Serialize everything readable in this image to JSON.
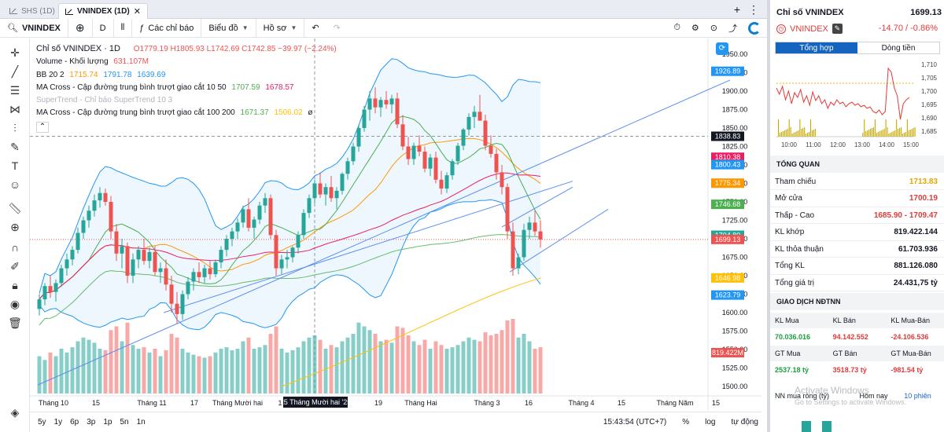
{
  "tabs": [
    {
      "label": "SHS (1D)",
      "active": false
    },
    {
      "label": "VNINDEX (1D)",
      "active": true
    }
  ],
  "toolbar": {
    "symbol": "VNINDEX",
    "interval": "D",
    "indicators_label": "Các chỉ báo",
    "chart_type_label": "Biểu đồ",
    "profile_label": "Hồ sơ"
  },
  "legend": {
    "title": "Chỉ số VNINDEX · 1D",
    "ohlc": "O1779.19 H1805.93 L1742.69 C1742.85 −39.97 (−2.24%)",
    "volume_label": "Volume - Khối lượng",
    "volume_value": "631.107M",
    "bb_label": "BB 20 2",
    "bb_values": [
      "1715.74",
      "1791.78",
      "1639.69"
    ],
    "ma1_label": "MA Cross - Cập đường trung bình trượt giao cắt 10 50",
    "ma1_values": [
      "1707.59",
      "1678.57"
    ],
    "supertrend_label": "SuperTrend - Chỉ báo SuperTrend 10 3",
    "ma2_label": "MA Cross - Cập đường trung bình trượt giao cắt 100 200",
    "ma2_values": [
      "1671.37",
      "1506.02"
    ]
  },
  "price_axis": {
    "ticks": [
      "1950.00",
      "1925.00",
      "1900.00",
      "1875.00",
      "1850.00",
      "1825.00",
      "1800.00",
      "1775.00",
      "1750.00",
      "1725.00",
      "1700.00",
      "1675.00",
      "1650.00",
      "1625.00",
      "1600.00",
      "1575.00",
      "1550.00",
      "1525.00",
      "1500.00"
    ],
    "tags": [
      {
        "value": "1926.89",
        "color": "#2196f3"
      },
      {
        "value": "1838.83",
        "color": "#131722"
      },
      {
        "value": "1810.38",
        "color": "#e91e63"
      },
      {
        "value": "1800.43",
        "color": "#2196f3"
      },
      {
        "value": "1775.34",
        "color": "#ff9800"
      },
      {
        "value": "1746.68",
        "color": "#4caf50"
      },
      {
        "value": "1704.80",
        "color": "#26a69a"
      },
      {
        "value": "1699.13",
        "color": "#ef5350"
      },
      {
        "value": "1646.98",
        "color": "#ffc107"
      },
      {
        "value": "1623.79",
        "color": "#2196f3"
      },
      {
        "value": "819.422M",
        "color": "#ef5350"
      }
    ]
  },
  "time_axis": {
    "labels": [
      "Tháng 10",
      "15",
      "Tháng 11",
      "17",
      "Tháng Mười hai",
      "1",
      "19",
      "Tháng Hai",
      "Tháng 3",
      "16",
      "Tháng 4",
      "15",
      "Tháng Năm",
      "15"
    ],
    "crosshair_label": "25 Tháng Mười hai '25"
  },
  "bottombar": {
    "ranges": [
      "5y",
      "1y",
      "6p",
      "3p",
      "1p",
      "5n",
      "1n"
    ],
    "clock": "15:43:54 (UTC+7)",
    "options": [
      "%",
      "log",
      "tự động"
    ]
  },
  "panel": {
    "title": "Chỉ số VNINDEX",
    "price": "1699.13",
    "symbol": "VNINDEX",
    "change": "-14.70 / -0.86%",
    "tab_summary": "Tổng hợp",
    "tab_flow": "Dòng tiền",
    "mini_chart": {
      "y_ticks": [
        "1,710",
        "1,705",
        "1,700",
        "1,695",
        "1,690",
        "1,685"
      ],
      "x_ticks": [
        "10:00",
        "11:00",
        "12:00",
        "13:00",
        "14:00",
        "15:00"
      ]
    },
    "overview_title": "TỔNG QUAN",
    "overview": [
      {
        "label": "Tham chiếu",
        "value": "1713.83",
        "color": "#e0a800"
      },
      {
        "label": "Mở cửa",
        "value": "1700.19",
        "color": "#e03b3b"
      },
      {
        "label": "Thấp - Cao",
        "value": "1685.90 - 1709.47",
        "color": "#e03b3b"
      },
      {
        "label": "KL khớp",
        "value": "819.422.144",
        "color": "#131722"
      },
      {
        "label": "KL thỏa thuận",
        "value": "61.703.936",
        "color": "#131722"
      },
      {
        "label": "Tổng KL",
        "value": "881.126.080",
        "color": "#131722"
      },
      {
        "label": "Tổng giá trị",
        "value": "24.431,75 tỷ",
        "color": "#131722"
      }
    ],
    "foreign_title": "GIAO DỊCH NĐTNN",
    "foreign_head1": [
      "KL Mua",
      "KL Bán",
      "KL Mua-Bán"
    ],
    "foreign_vals1": [
      "70.036.016",
      "94.142.552",
      "-24.106.536"
    ],
    "foreign_head2": [
      "GT Mua",
      "GT Bán",
      "GT Mua-Bán"
    ],
    "foreign_vals2": [
      "2537.18 tỷ",
      "3518.73 tỷ",
      "-981.54 tỷ"
    ],
    "net_label": "NN mua ròng (tỷ)",
    "today_label": "Hôm nay",
    "sessions_label": "10 phiên"
  },
  "watermark": {
    "line1": "Activate Windows",
    "line2": "Go to Settings to activate Windows."
  },
  "chart_data": {
    "type": "candlestick",
    "symbol": "VNINDEX",
    "interval": "1D",
    "ylim": [
      1500,
      1960
    ],
    "last_close": 1699.13,
    "candles": [
      [
        1605,
        1625,
        1596,
        1618
      ],
      [
        1618,
        1640,
        1610,
        1636
      ],
      [
        1636,
        1650,
        1620,
        1628
      ],
      [
        1628,
        1645,
        1615,
        1640
      ],
      [
        1640,
        1665,
        1635,
        1660
      ],
      [
        1660,
        1680,
        1650,
        1672
      ],
      [
        1672,
        1690,
        1664,
        1685
      ],
      [
        1685,
        1715,
        1680,
        1708
      ],
      [
        1708,
        1730,
        1700,
        1725
      ],
      [
        1725,
        1745,
        1715,
        1738
      ],
      [
        1738,
        1760,
        1730,
        1752
      ],
      [
        1752,
        1770,
        1742,
        1762
      ],
      [
        1762,
        1768,
        1745,
        1750
      ],
      [
        1750,
        1758,
        1700,
        1710
      ],
      [
        1710,
        1720,
        1670,
        1680
      ],
      [
        1680,
        1700,
        1660,
        1690
      ],
      [
        1690,
        1695,
        1640,
        1650
      ],
      [
        1650,
        1680,
        1640,
        1672
      ],
      [
        1672,
        1690,
        1660,
        1685
      ],
      [
        1685,
        1700,
        1665,
        1670
      ],
      [
        1670,
        1688,
        1660,
        1682
      ],
      [
        1682,
        1690,
        1650,
        1655
      ],
      [
        1655,
        1668,
        1640,
        1660
      ],
      [
        1660,
        1672,
        1630,
        1638
      ],
      [
        1638,
        1650,
        1600,
        1612
      ],
      [
        1612,
        1628,
        1585,
        1598
      ],
      [
        1598,
        1630,
        1590,
        1625
      ],
      [
        1625,
        1648,
        1618,
        1642
      ],
      [
        1642,
        1660,
        1630,
        1655
      ],
      [
        1655,
        1668,
        1640,
        1648
      ],
      [
        1648,
        1665,
        1640,
        1660
      ],
      [
        1660,
        1670,
        1645,
        1652
      ],
      [
        1652,
        1672,
        1648,
        1668
      ],
      [
        1668,
        1690,
        1660,
        1685
      ],
      [
        1685,
        1705,
        1676,
        1700
      ],
      [
        1700,
        1715,
        1690,
        1710
      ],
      [
        1710,
        1728,
        1700,
        1722
      ],
      [
        1722,
        1745,
        1715,
        1740
      ],
      [
        1740,
        1755,
        1710,
        1715
      ],
      [
        1715,
        1730,
        1700,
        1726
      ],
      [
        1726,
        1750,
        1720,
        1745
      ],
      [
        1745,
        1762,
        1735,
        1755
      ],
      [
        1755,
        1760,
        1700,
        1705
      ],
      [
        1705,
        1712,
        1650,
        1660
      ],
      [
        1660,
        1678,
        1652,
        1672
      ],
      [
        1672,
        1685,
        1660,
        1675
      ],
      [
        1675,
        1690,
        1668,
        1688
      ],
      [
        1688,
        1710,
        1680,
        1705
      ],
      [
        1705,
        1740,
        1700,
        1735
      ],
      [
        1735,
        1760,
        1728,
        1755
      ],
      [
        1755,
        1780,
        1748,
        1775
      ],
      [
        1775,
        1790,
        1755,
        1760
      ],
      [
        1760,
        1775,
        1745,
        1770
      ],
      [
        1770,
        1785,
        1750,
        1755
      ],
      [
        1755,
        1770,
        1740,
        1765
      ],
      [
        1765,
        1790,
        1760,
        1788
      ],
      [
        1788,
        1810,
        1780,
        1805
      ],
      [
        1805,
        1830,
        1800,
        1825
      ],
      [
        1825,
        1855,
        1818,
        1850
      ],
      [
        1850,
        1880,
        1845,
        1875
      ],
      [
        1875,
        1900,
        1860,
        1890
      ],
      [
        1890,
        1905,
        1870,
        1878
      ],
      [
        1878,
        1892,
        1865,
        1888
      ],
      [
        1888,
        1900,
        1876,
        1882
      ],
      [
        1882,
        1895,
        1870,
        1890
      ],
      [
        1890,
        1898,
        1850,
        1855
      ],
      [
        1855,
        1868,
        1820,
        1825
      ],
      [
        1825,
        1838,
        1800,
        1808
      ],
      [
        1808,
        1830,
        1800,
        1826
      ],
      [
        1826,
        1840,
        1812,
        1818
      ],
      [
        1818,
        1825,
        1790,
        1795
      ],
      [
        1795,
        1815,
        1785,
        1810
      ],
      [
        1810,
        1818,
        1775,
        1780
      ],
      [
        1780,
        1792,
        1760,
        1768
      ],
      [
        1768,
        1790,
        1762,
        1786
      ],
      [
        1786,
        1808,
        1780,
        1805
      ],
      [
        1805,
        1830,
        1800,
        1826
      ],
      [
        1826,
        1850,
        1820,
        1848
      ],
      [
        1848,
        1870,
        1840,
        1865
      ],
      [
        1865,
        1880,
        1850,
        1872
      ],
      [
        1872,
        1895,
        1860,
        1860
      ],
      [
        1860,
        1868,
        1820,
        1826
      ],
      [
        1826,
        1840,
        1810,
        1815
      ],
      [
        1815,
        1822,
        1780,
        1790
      ],
      [
        1790,
        1800,
        1760,
        1770
      ],
      [
        1770,
        1775,
        1700,
        1710
      ],
      [
        1710,
        1722,
        1650,
        1660
      ],
      [
        1660,
        1680,
        1652,
        1675
      ],
      [
        1675,
        1720,
        1670,
        1712
      ],
      [
        1712,
        1730,
        1700,
        1722
      ],
      [
        1722,
        1738,
        1704,
        1710
      ],
      [
        1710,
        1725,
        1688,
        1699
      ]
    ],
    "volume_relative": [
      0.5,
      0.45,
      0.55,
      0.5,
      0.6,
      0.55,
      0.62,
      0.7,
      0.75,
      0.72,
      0.68,
      0.6,
      0.58,
      0.85,
      0.9,
      0.7,
      0.95,
      0.65,
      0.6,
      0.62,
      0.55,
      0.6,
      0.5,
      0.58,
      0.8,
      0.75,
      0.6,
      0.55,
      0.52,
      0.5,
      0.48,
      0.5,
      0.55,
      0.6,
      0.62,
      0.58,
      0.6,
      0.7,
      0.75,
      0.6,
      0.62,
      0.65,
      0.8,
      0.9,
      0.6,
      0.55,
      0.58,
      0.62,
      0.7,
      0.75,
      0.78,
      0.72,
      0.6,
      0.65,
      0.62,
      0.7,
      0.75,
      0.8,
      0.95,
      0.9,
      0.85,
      0.8,
      0.7,
      0.72,
      0.68,
      0.9,
      0.88,
      0.78,
      0.7,
      0.65,
      0.72,
      0.6,
      0.7,
      0.65,
      0.6,
      0.62,
      0.65,
      0.7,
      0.75,
      0.72,
      0.7,
      0.82,
      0.78,
      0.8,
      0.85,
      0.98,
      1.0,
      0.75,
      0.8,
      0.7,
      0.6,
      0.62
    ]
  }
}
